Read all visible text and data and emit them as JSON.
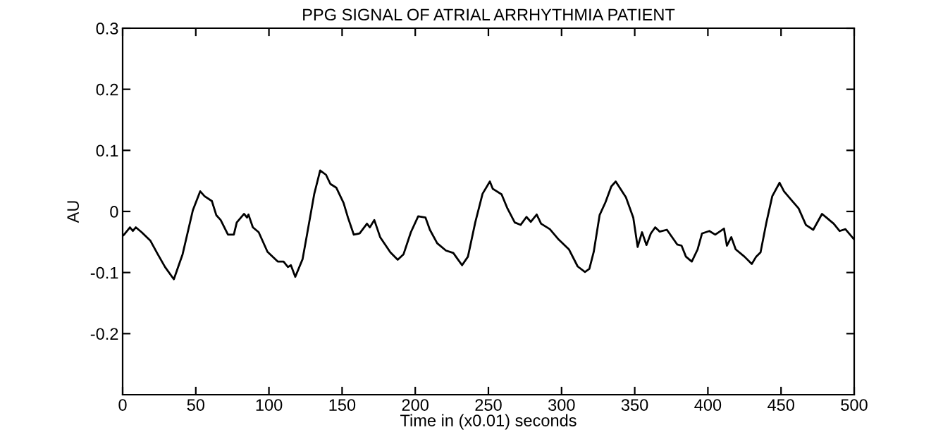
{
  "chart_data": {
    "type": "line",
    "title": "PPG SIGNAL OF ATRIAL ARRHYTHMIA PATIENT",
    "xlabel": "Time in (x0.01) seconds",
    "ylabel": "AU",
    "x": [
      0,
      1,
      5,
      7,
      9,
      13,
      19,
      24,
      29,
      35,
      41,
      48,
      53,
      56,
      61,
      64,
      67,
      72,
      76,
      78,
      83,
      85,
      86,
      89,
      93,
      99,
      106,
      110,
      113,
      115,
      118,
      123,
      126,
      131,
      135,
      139,
      142,
      146,
      151,
      154,
      158,
      162,
      167,
      169,
      172,
      176,
      183,
      188,
      192,
      197,
      202,
      207,
      210,
      215,
      221,
      226,
      229,
      232,
      236,
      241,
      246,
      251,
      253,
      259,
      263,
      268,
      272,
      276,
      279,
      283,
      286,
      292,
      298,
      305,
      311,
      316,
      319,
      322,
      326,
      330,
      334,
      337,
      344,
      349,
      352,
      355,
      358,
      361,
      364,
      367,
      372,
      379,
      382,
      385,
      389,
      393,
      396,
      401,
      405,
      411,
      413,
      416,
      419,
      425,
      430,
      433,
      436,
      440,
      444,
      449,
      452,
      457,
      462,
      467,
      472,
      478,
      481,
      486,
      490,
      494,
      500
    ],
    "series": [
      {
        "color": "#000000",
        "values": [
          -0.04,
          -0.038,
          -0.026,
          -0.032,
          -0.026,
          -0.034,
          -0.048,
          -0.07,
          -0.091,
          -0.111,
          -0.07,
          0.002,
          0.033,
          0.025,
          0.017,
          -0.006,
          -0.014,
          -0.038,
          -0.038,
          -0.018,
          -0.004,
          -0.01,
          -0.005,
          -0.026,
          -0.034,
          -0.066,
          -0.082,
          -0.082,
          -0.091,
          -0.088,
          -0.107,
          -0.078,
          -0.038,
          0.029,
          0.067,
          0.06,
          0.045,
          0.039,
          0.014,
          -0.01,
          -0.038,
          -0.036,
          -0.02,
          -0.026,
          -0.014,
          -0.042,
          -0.067,
          -0.079,
          -0.07,
          -0.034,
          -0.008,
          -0.01,
          -0.03,
          -0.052,
          -0.064,
          -0.068,
          -0.078,
          -0.088,
          -0.074,
          -0.018,
          0.029,
          0.049,
          0.037,
          0.028,
          0.005,
          -0.018,
          -0.022,
          -0.009,
          -0.017,
          -0.005,
          -0.02,
          -0.029,
          -0.046,
          -0.062,
          -0.09,
          -0.099,
          -0.094,
          -0.066,
          -0.006,
          0.015,
          0.041,
          0.049,
          0.023,
          -0.01,
          -0.058,
          -0.034,
          -0.055,
          -0.036,
          -0.026,
          -0.033,
          -0.03,
          -0.054,
          -0.056,
          -0.074,
          -0.082,
          -0.062,
          -0.036,
          -0.032,
          -0.038,
          -0.028,
          -0.056,
          -0.042,
          -0.062,
          -0.074,
          -0.086,
          -0.074,
          -0.067,
          -0.018,
          0.025,
          0.047,
          0.033,
          0.019,
          0.005,
          -0.022,
          -0.03,
          -0.004,
          -0.01,
          -0.02,
          -0.032,
          -0.029,
          -0.046
        ]
      }
    ],
    "xlim": [
      0,
      500
    ],
    "ylim": [
      -0.3,
      0.3
    ],
    "xticks": [
      0,
      50,
      100,
      150,
      200,
      250,
      300,
      350,
      400,
      450,
      500
    ],
    "yticks": [
      -0.2,
      -0.1,
      0,
      0.1,
      0.2,
      0.3
    ],
    "grid": false,
    "legend": false,
    "marker": "none",
    "line_style": "solid"
  }
}
